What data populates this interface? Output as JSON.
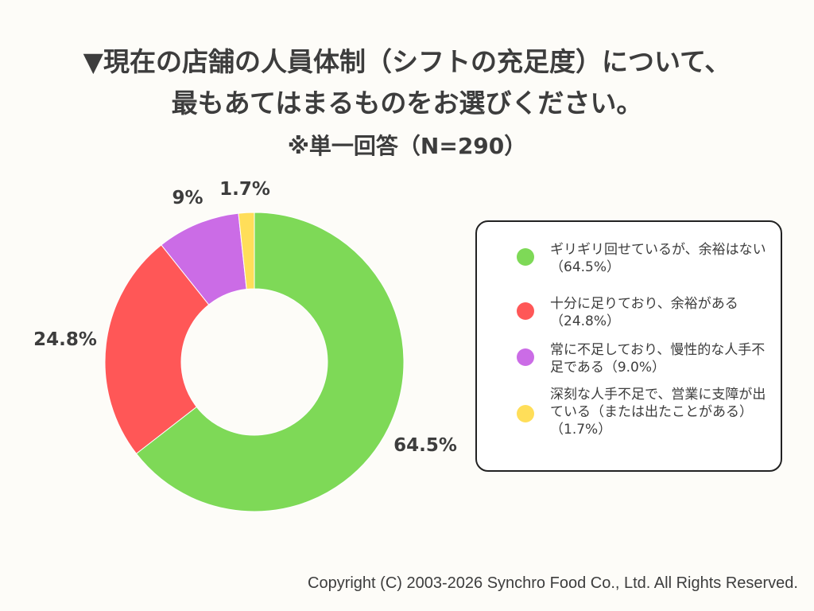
{
  "title_line1": "▼現在の店舗の人員体制（シフトの充足度）について、",
  "title_line2": "最もあてはまるものをお選びください。",
  "subtitle": "※単一回答（N=290）",
  "copyright": "Copyright (C) 2003-2026  Synchro Food Co., Ltd. All Rights Reserved.",
  "chart_data": {
    "type": "pie",
    "donut": true,
    "slices": [
      {
        "label": "ギリギリ回せているが、余裕はない（64.5%）",
        "value": 64.5,
        "display": "64.5%",
        "color": "#7ed957"
      },
      {
        "label": "十分に足りており、余裕がある（24.8%）",
        "value": 24.8,
        "display": "24.8%",
        "color": "#ff5757"
      },
      {
        "label": "常に不足しており、慢性的な人手不足である（9.0%）",
        "value": 9.0,
        "display": "9%",
        "color": "#cb6ce6"
      },
      {
        "label": "深刻な人手不足で、営業に支障が出ている（または出たことがある）（1.7%）",
        "value": 1.7,
        "display": "1.7%",
        "color": "#ffde59"
      }
    ],
    "start_angle_deg": 0,
    "direction": "clockwise",
    "legend_position": "right"
  }
}
